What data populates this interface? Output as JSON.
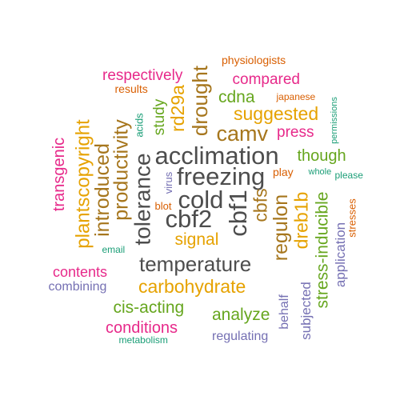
{
  "colors": {
    "gray": "#4d4d4d",
    "brown": "#a6761d",
    "gold": "#e6a200",
    "green": "#66a61e",
    "magenta": "#e7298a",
    "orange": "#d95f02",
    "purple": "#7570b3",
    "teal": "#1b9e77"
  },
  "words": [
    {
      "id": "w0",
      "text": "physiologists"
    },
    {
      "id": "w1",
      "text": "respectively"
    },
    {
      "id": "w2",
      "text": "compared"
    },
    {
      "id": "w3",
      "text": "results"
    },
    {
      "id": "w4",
      "text": "japanese"
    },
    {
      "id": "w5",
      "text": "cdna"
    },
    {
      "id": "w6",
      "text": "suggested"
    },
    {
      "id": "w7",
      "text": "camv"
    },
    {
      "id": "w8",
      "text": "press"
    },
    {
      "id": "w9",
      "text": "acclimation"
    },
    {
      "id": "w10",
      "text": "though"
    },
    {
      "id": "w11",
      "text": "freezing"
    },
    {
      "id": "w12",
      "text": "play"
    },
    {
      "id": "w13",
      "text": "whole"
    },
    {
      "id": "w14",
      "text": "please"
    },
    {
      "id": "w15",
      "text": "cold"
    },
    {
      "id": "w16",
      "text": "cbf2"
    },
    {
      "id": "w17",
      "text": "blot"
    },
    {
      "id": "w18",
      "text": "signal"
    },
    {
      "id": "w19",
      "text": "email"
    },
    {
      "id": "w20",
      "text": "temperature"
    },
    {
      "id": "w21",
      "text": "contents"
    },
    {
      "id": "w22",
      "text": "combining"
    },
    {
      "id": "w23",
      "text": "carbohydrate"
    },
    {
      "id": "w24",
      "text": "cis-acting"
    },
    {
      "id": "w25",
      "text": "analyze"
    },
    {
      "id": "w26",
      "text": "conditions"
    },
    {
      "id": "w27",
      "text": "metabolism"
    },
    {
      "id": "w28",
      "text": "regulating"
    },
    {
      "id": "w29",
      "text": "transgenic"
    },
    {
      "id": "w30",
      "text": "plantscopyright"
    },
    {
      "id": "w31",
      "text": "introduced"
    },
    {
      "id": "w32",
      "text": "productivity"
    },
    {
      "id": "w33",
      "text": "acids"
    },
    {
      "id": "w34",
      "text": "study"
    },
    {
      "id": "w35",
      "text": "rd29a"
    },
    {
      "id": "w36",
      "text": "drought"
    },
    {
      "id": "w37",
      "text": "tolerance"
    },
    {
      "id": "w38",
      "text": "virus"
    },
    {
      "id": "w39",
      "text": "cbf1"
    },
    {
      "id": "w40",
      "text": "cbfs"
    },
    {
      "id": "w41",
      "text": "regulon"
    },
    {
      "id": "w42",
      "text": "dreb1b"
    },
    {
      "id": "w43",
      "text": "stress-inducible"
    },
    {
      "id": "w44",
      "text": "application"
    },
    {
      "id": "w45",
      "text": "permissions"
    },
    {
      "id": "w46",
      "text": "stresses"
    },
    {
      "id": "w47",
      "text": "behalf"
    },
    {
      "id": "w48",
      "text": "subjected"
    }
  ]
}
